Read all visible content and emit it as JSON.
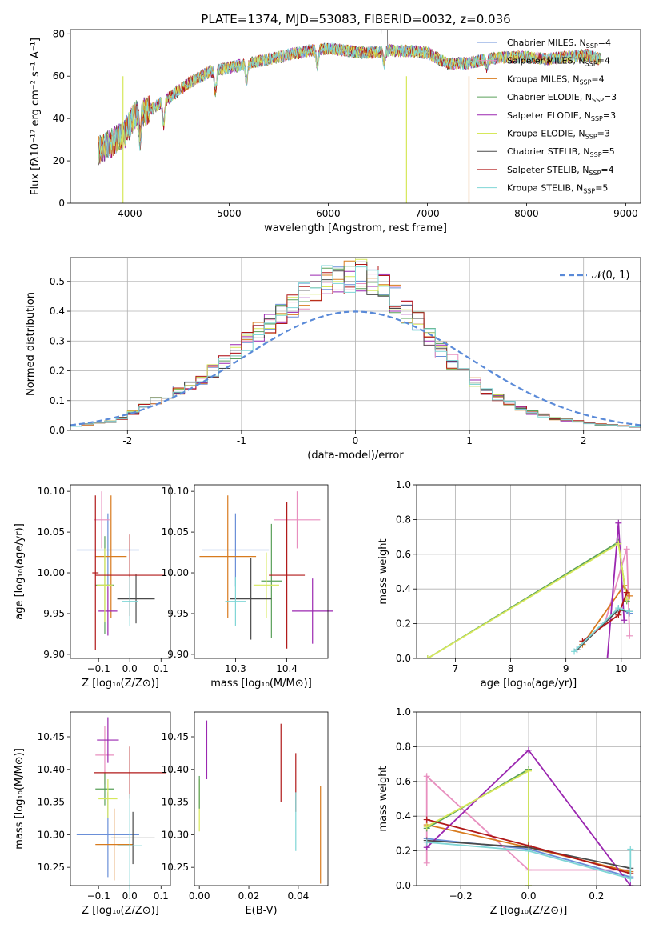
{
  "figure": {
    "title": "PLATE=1374, MJD=53083, FIBERID=0032, z=0.036"
  },
  "legend_series": [
    {
      "name": "Chabrier MILES, N",
      "sub": "SSP",
      "suffix": "=4",
      "color": "#6a8fd8"
    },
    {
      "name": "Salpeter MILES, N",
      "sub": "SSP",
      "suffix": "=4",
      "color": "#e88fbf"
    },
    {
      "name": "Kroupa MILES, N",
      "sub": "SSP",
      "suffix": "=4",
      "color": "#d87b1e"
    },
    {
      "name": "Chabrier ELODIE, N",
      "sub": "SSP",
      "suffix": "=3",
      "color": "#5aa05a"
    },
    {
      "name": "Salpeter ELODIE, N",
      "sub": "SSP",
      "suffix": "=3",
      "color": "#9b27b0"
    },
    {
      "name": "Kroupa ELODIE, N",
      "sub": "SSP",
      "suffix": "=3",
      "color": "#d6e85a"
    },
    {
      "name": "Chabrier STELIB, N",
      "sub": "SSP",
      "suffix": "=5",
      "color": "#4a4a4a"
    },
    {
      "name": "Salpeter STELIB, N",
      "sub": "SSP",
      "suffix": "=4",
      "color": "#b01818"
    },
    {
      "name": "Kroupa STELIB, N",
      "sub": "SSP",
      "suffix": "=5",
      "color": "#7fd6d6"
    }
  ],
  "chart_data": [
    {
      "id": "spectrum",
      "type": "line",
      "xlabel": "wavelength [Angstrom, rest frame]",
      "ylabel": "Flux [fλ10⁻¹⁷ erg cm⁻² s⁻¹ A⁻¹]",
      "xlim": [
        3400,
        9150
      ],
      "ylim": [
        0,
        82
      ],
      "xticks": [
        4000,
        5000,
        6000,
        7000,
        8000,
        9000
      ],
      "yticks": [
        0,
        20,
        40,
        60,
        80
      ],
      "continuum": {
        "x": [
          3680,
          3800,
          3950,
          4050,
          4200,
          4400,
          4600,
          4800,
          5000,
          5200,
          5400,
          5600,
          5800,
          6000,
          6200,
          6400,
          6600,
          6800,
          7000,
          7200,
          7400,
          7600,
          7800,
          8000,
          8200,
          8400,
          8600,
          8750
        ],
        "y": [
          25,
          28,
          33,
          42,
          44,
          50,
          57,
          62,
          64,
          66,
          68,
          70,
          72,
          73,
          72,
          71,
          72,
          72,
          71,
          66,
          66,
          68,
          69,
          69,
          68,
          69,
          70,
          68
        ]
      },
      "drops": [
        {
          "x": 3930,
          "series": "Kroupa ELODIE"
        },
        {
          "x": 6790,
          "series": "Kroupa ELODIE"
        },
        {
          "x": 7420,
          "series": "Kroupa MILES"
        }
      ]
    },
    {
      "id": "residuals",
      "type": "histogram",
      "xlabel": "(data-model)/error",
      "ylabel": "Normed distribution",
      "xlim": [
        -2.5,
        2.5
      ],
      "ylim": [
        0,
        0.58
      ],
      "xticks": [
        -2,
        -1,
        0,
        1,
        2
      ],
      "yticks": [
        0.0,
        0.1,
        0.2,
        0.3,
        0.4,
        0.5
      ],
      "grid": true,
      "legend": {
        "label": "𝒩(0, 1)",
        "placement": "top-right"
      },
      "bin_width": 0.1,
      "bin_start": -2.5,
      "base_values": [
        0.015,
        0.02,
        0.025,
        0.03,
        0.04,
        0.06,
        0.08,
        0.1,
        0.12,
        0.135,
        0.15,
        0.17,
        0.2,
        0.23,
        0.26,
        0.3,
        0.33,
        0.36,
        0.39,
        0.42,
        0.45,
        0.48,
        0.5,
        0.51,
        0.52,
        0.52,
        0.5,
        0.48,
        0.44,
        0.4,
        0.36,
        0.32,
        0.27,
        0.23,
        0.19,
        0.16,
        0.13,
        0.11,
        0.09,
        0.075,
        0.06,
        0.05,
        0.04,
        0.035,
        0.03,
        0.025,
        0.02,
        0.018,
        0.015,
        0.012
      ]
    },
    {
      "id": "age_vs_Z",
      "type": "errorbar",
      "xlabel": "Z [log₁₀(Z/Z⊙)]",
      "ylabel": "age  [log₁₀(age/yr)]",
      "xlim": [
        -0.19,
        0.13
      ],
      "ylim": [
        9.895,
        10.108
      ],
      "xticks": [
        -0.1,
        0.0,
        0.1
      ],
      "xticklabels": [
        "−0.1",
        "0.0",
        "0.1"
      ],
      "yticks": [
        9.9,
        9.95,
        10.0,
        10.05,
        10.1
      ],
      "yticklabels": [
        "9.90",
        "9.95",
        "10.00",
        "10.05",
        "10.10"
      ],
      "points": [
        {
          "x": -0.07,
          "y": 10.028,
          "xerr": 0.1,
          "yerr": 0.045,
          "color": "#6a8fd8"
        },
        {
          "x": -0.09,
          "y": 10.065,
          "xerr": 0.025,
          "yerr": 0.035,
          "color": "#e88fbf"
        },
        {
          "x": -0.06,
          "y": 10.02,
          "xerr": 0.05,
          "yerr": 0.075,
          "color": "#d87b1e"
        },
        {
          "x": -0.08,
          "y": 9.985,
          "xerr": 0.03,
          "yerr": 0.06,
          "color": "#5aa05a"
        },
        {
          "x": -0.07,
          "y": 9.953,
          "xerr": 0.03,
          "yerr": 0.03,
          "color": "#9b27b0"
        },
        {
          "x": -0.08,
          "y": 9.985,
          "xerr": 0.025,
          "yerr": 0.045,
          "color": "#d6e85a"
        },
        {
          "x": 0.02,
          "y": 9.968,
          "xerr": 0.06,
          "yerr": 0.03,
          "color": "#4a4a4a"
        },
        {
          "x": 0.0,
          "y": 9.997,
          "xerr": 0.11,
          "yerr": 0.05,
          "color": "#b01818"
        },
        {
          "x": 0.0,
          "y": 9.965,
          "xerr": 0.025,
          "yerr": 0.03,
          "color": "#7fd6d6"
        },
        {
          "x": -0.11,
          "y": 10.0,
          "xerr": 0.01,
          "yerr": 0.095,
          "color": "#b01818"
        }
      ]
    },
    {
      "id": "age_vs_mass",
      "type": "errorbar",
      "xlabel": "mass [log₁₀(M/M⊙)]",
      "xlim": [
        10.22,
        10.48
      ],
      "ylim": [
        9.895,
        10.108
      ],
      "xticks": [
        10.3,
        10.4
      ],
      "xticklabels": [
        "10.3",
        "10.4"
      ],
      "yticks": [
        9.9,
        9.95,
        10.0,
        10.05,
        10.1
      ],
      "yticklabels": [
        "9.90",
        "9.95",
        "10.00",
        "10.05",
        "10.10"
      ],
      "points": [
        {
          "x": 10.3,
          "y": 10.028,
          "xerr": 0.065,
          "yerr": 0.045,
          "color": "#6a8fd8"
        },
        {
          "x": 10.42,
          "y": 10.065,
          "xerr": 0.045,
          "yerr": 0.035,
          "color": "#e88fbf"
        },
        {
          "x": 10.285,
          "y": 10.02,
          "xerr": 0.055,
          "yerr": 0.075,
          "color": "#d87b1e"
        },
        {
          "x": 10.37,
          "y": 9.99,
          "xerr": 0.02,
          "yerr": 0.07,
          "color": "#5aa05a"
        },
        {
          "x": 10.45,
          "y": 9.953,
          "xerr": 0.04,
          "yerr": 0.04,
          "color": "#9b27b0"
        },
        {
          "x": 10.36,
          "y": 9.985,
          "xerr": 0.025,
          "yerr": 0.04,
          "color": "#d6e85a"
        },
        {
          "x": 10.33,
          "y": 9.968,
          "xerr": 0.04,
          "yerr": 0.05,
          "color": "#4a4a4a"
        },
        {
          "x": 10.4,
          "y": 9.997,
          "xerr": 0.035,
          "yerr": 0.09,
          "color": "#b01818"
        },
        {
          "x": 10.3,
          "y": 9.965,
          "xerr": 0.02,
          "yerr": 0.03,
          "color": "#7fd6d6"
        }
      ]
    },
    {
      "id": "weight_vs_age",
      "type": "line",
      "xlabel": "age  [log₁₀(age/yr)]",
      "ylabel": "mass weight",
      "xlim": [
        6.3,
        10.35
      ],
      "ylim": [
        0,
        1
      ],
      "xticks": [
        7,
        8,
        9,
        10
      ],
      "yticks": [
        0.0,
        0.2,
        0.4,
        0.6,
        0.8,
        1.0
      ],
      "grid": true,
      "series": [
        {
          "color": "#6a8fd8",
          "x": [
            9.2,
            9.95,
            10.15
          ],
          "y": [
            0.05,
            0.29,
            0.26
          ]
        },
        {
          "color": "#e88fbf",
          "x": [
            9.7,
            10.1,
            10.15
          ],
          "y": [
            0.2,
            0.63,
            0.13
          ]
        },
        {
          "color": "#d87b1e",
          "x": [
            9.3,
            10.05,
            10.15
          ],
          "y": [
            0.08,
            0.42,
            0.36
          ]
        },
        {
          "color": "#5aa05a",
          "x": [
            6.5,
            9.95,
            10.1
          ],
          "y": [
            0.0,
            0.67,
            0.33
          ]
        },
        {
          "color": "#9b27b0",
          "x": [
            9.75,
            9.95,
            10.05
          ],
          "y": [
            0.0,
            0.78,
            0.22
          ]
        },
        {
          "color": "#d6e85a",
          "x": [
            6.5,
            9.95,
            10.1
          ],
          "y": [
            0.0,
            0.66,
            0.34
          ]
        },
        {
          "color": "#4a4a4a",
          "x": [
            9.2,
            9.95,
            10.15
          ],
          "y": [
            0.05,
            0.28,
            0.27
          ]
        },
        {
          "color": "#b01818",
          "x": [
            9.3,
            9.95,
            10.1
          ],
          "y": [
            0.1,
            0.25,
            0.38
          ]
        },
        {
          "color": "#7fd6d6",
          "x": [
            9.15,
            9.95,
            10.15
          ],
          "y": [
            0.04,
            0.29,
            0.27
          ]
        }
      ]
    },
    {
      "id": "mass_vs_Z",
      "type": "errorbar",
      "xlabel": "Z [log₁₀(Z/Z⊙)]",
      "ylabel": "mass [log₁₀(M/M⊙)]",
      "xlim": [
        -0.19,
        0.13
      ],
      "ylim": [
        10.222,
        10.488
      ],
      "xticks": [
        -0.1,
        0.0,
        0.1
      ],
      "xticklabels": [
        "−0.1",
        "0.0",
        "0.1"
      ],
      "yticks": [
        10.25,
        10.3,
        10.35,
        10.4,
        10.45
      ],
      "yticklabels": [
        "10.25",
        "10.30",
        "10.35",
        "10.40",
        "10.45"
      ],
      "points": [
        {
          "x": -0.07,
          "y": 10.3,
          "xerr": 0.1,
          "yerr": 0.065,
          "color": "#6a8fd8"
        },
        {
          "x": -0.08,
          "y": 10.422,
          "xerr": 0.03,
          "yerr": 0.045,
          "color": "#e88fbf"
        },
        {
          "x": -0.05,
          "y": 10.285,
          "xerr": 0.06,
          "yerr": 0.055,
          "color": "#d87b1e"
        },
        {
          "x": -0.08,
          "y": 10.37,
          "xerr": 0.03,
          "yerr": 0.025,
          "color": "#5aa05a"
        },
        {
          "x": -0.07,
          "y": 10.445,
          "xerr": 0.035,
          "yerr": 0.035,
          "color": "#9b27b0"
        },
        {
          "x": -0.07,
          "y": 10.355,
          "xerr": 0.03,
          "yerr": 0.03,
          "color": "#d6e85a"
        },
        {
          "x": 0.01,
          "y": 10.295,
          "xerr": 0.07,
          "yerr": 0.04,
          "color": "#4a4a4a"
        },
        {
          "x": 0.0,
          "y": 10.395,
          "xerr": 0.115,
          "yerr": 0.04,
          "color": "#b01818"
        },
        {
          "x": 0.0,
          "y": 10.283,
          "xerr": 0.04,
          "yerr": 0.08,
          "color": "#7fd6d6"
        }
      ]
    },
    {
      "id": "mass_vs_EBV",
      "type": "errorbar",
      "xlabel": "E(B-V)",
      "xlim": [
        -0.002,
        0.052
      ],
      "ylim": [
        10.222,
        10.488
      ],
      "xticks": [
        0.0,
        0.02,
        0.04
      ],
      "xticklabels": [
        "0.00",
        "0.02",
        "0.04"
      ],
      "yticks": [
        10.25,
        10.3,
        10.35,
        10.4,
        10.45
      ],
      "yticklabels": [
        "10.25",
        "10.30",
        "10.35",
        "10.40",
        "10.45"
      ],
      "points": [
        {
          "x": 0.0,
          "y": 10.345,
          "xerr": 0.0,
          "yerr": 0.04,
          "color": "#d6e85a"
        },
        {
          "x": 0.0,
          "y": 10.365,
          "xerr": 0.0,
          "yerr": 0.025,
          "color": "#5aa05a"
        },
        {
          "x": 0.003,
          "y": 10.43,
          "xerr": 0.0,
          "yerr": 0.045,
          "color": "#9b27b0"
        },
        {
          "x": 0.033,
          "y": 10.41,
          "xerr": 0.0,
          "yerr": 0.06,
          "color": "#b01818"
        },
        {
          "x": 0.039,
          "y": 10.38,
          "xerr": 0.0,
          "yerr": 0.045,
          "color": "#b01818"
        },
        {
          "x": 0.039,
          "y": 10.32,
          "xerr": 0.0,
          "yerr": 0.045,
          "color": "#7fd6d6"
        },
        {
          "x": 0.049,
          "y": 10.3,
          "xerr": 0.0,
          "yerr": 0.075,
          "color": "#d87b1e"
        }
      ]
    },
    {
      "id": "weight_vs_Z",
      "type": "line",
      "xlabel": "Z [log₁₀(Z/Z⊙)]",
      "ylabel": "mass weight",
      "xlim": [
        -0.33,
        0.33
      ],
      "ylim": [
        0,
        1
      ],
      "xticks": [
        -0.2,
        0.0,
        0.2
      ],
      "xticklabels": [
        "−0.2",
        "0.0",
        "0.2"
      ],
      "yticks": [
        0.0,
        0.2,
        0.4,
        0.6,
        0.8,
        1.0
      ],
      "grid": true,
      "series": [
        {
          "color": "#6a8fd8",
          "x": [
            -0.3,
            0.0,
            0.3
          ],
          "y": [
            0.27,
            0.21,
            0.05
          ]
        },
        {
          "color": "#e88fbf",
          "x": [
            -0.3,
            -0.3,
            0.0,
            0.3
          ],
          "y": [
            0.13,
            0.63,
            0.09,
            0.09
          ]
        },
        {
          "color": "#d87b1e",
          "x": [
            -0.3,
            0.0,
            0.3
          ],
          "y": [
            0.35,
            0.22,
            0.08
          ]
        },
        {
          "color": "#5aa05a",
          "x": [
            -0.3,
            0.0,
            0.0
          ],
          "y": [
            0.33,
            0.67,
            0.0
          ]
        },
        {
          "color": "#9b27b0",
          "x": [
            -0.3,
            0.0,
            0.3
          ],
          "y": [
            0.22,
            0.78,
            0.0
          ]
        },
        {
          "color": "#d6e85a",
          "x": [
            -0.3,
            0.0,
            0.0
          ],
          "y": [
            0.34,
            0.66,
            0.0
          ]
        },
        {
          "color": "#4a4a4a",
          "x": [
            -0.3,
            0.0,
            0.3
          ],
          "y": [
            0.26,
            0.22,
            0.1
          ]
        },
        {
          "color": "#b01818",
          "x": [
            -0.3,
            0.0,
            0.3
          ],
          "y": [
            0.38,
            0.23,
            0.07
          ]
        },
        {
          "color": "#7fd6d6",
          "x": [
            -0.3,
            0.0,
            0.3,
            0.3
          ],
          "y": [
            0.25,
            0.2,
            0.04,
            0.21
          ]
        }
      ]
    }
  ]
}
